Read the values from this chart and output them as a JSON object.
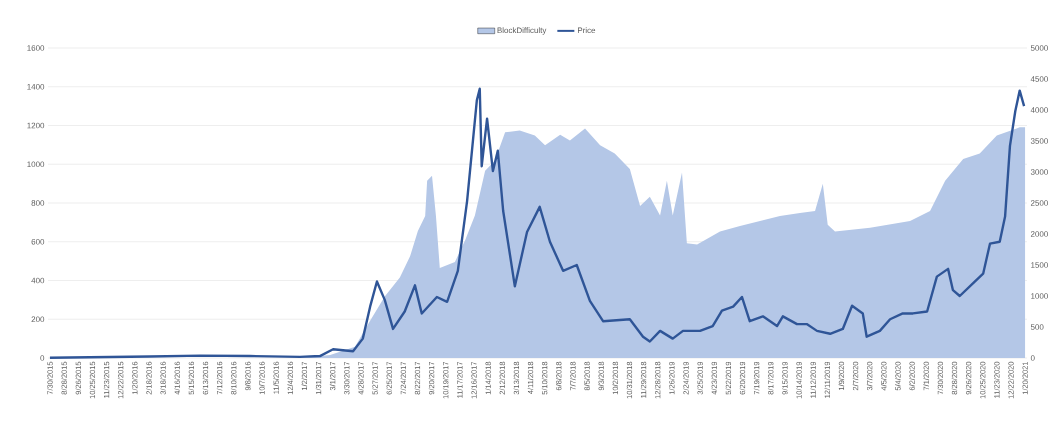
{
  "chart_data": {
    "type": "line",
    "xlim": [
      "2015-07-26",
      "2021-01-24"
    ],
    "xticks": [
      {
        "value": "2015-07-30",
        "label": "7/30/2015"
      },
      {
        "value": "2015-08-28",
        "label": "8/28/2015"
      },
      {
        "value": "2015-09-26",
        "label": "9/26/2015"
      },
      {
        "value": "2015-10-25",
        "label": "10/25/2015"
      },
      {
        "value": "2015-11-23",
        "label": "11/23/2015"
      },
      {
        "value": "2015-12-22",
        "label": "12/22/2015"
      },
      {
        "value": "2016-01-20",
        "label": "1/20/2016"
      },
      {
        "value": "2016-02-18",
        "label": "2/18/2016"
      },
      {
        "value": "2016-03-18",
        "label": "3/18/2016"
      },
      {
        "value": "2016-04-16",
        "label": "4/16/2016"
      },
      {
        "value": "2016-05-15",
        "label": "5/15/2016"
      },
      {
        "value": "2016-06-13",
        "label": "6/13/2016"
      },
      {
        "value": "2016-07-12",
        "label": "7/12/2016"
      },
      {
        "value": "2016-08-10",
        "label": "8/10/2016"
      },
      {
        "value": "2016-09-08",
        "label": "9/8/2016"
      },
      {
        "value": "2016-10-07",
        "label": "10/7/2016"
      },
      {
        "value": "2016-11-05",
        "label": "11/5/2016"
      },
      {
        "value": "2016-12-04",
        "label": "12/4/2016"
      },
      {
        "value": "2017-01-02",
        "label": "1/2/2017"
      },
      {
        "value": "2017-01-31",
        "label": "1/31/2017"
      },
      {
        "value": "2017-03-01",
        "label": "3/1/2017"
      },
      {
        "value": "2017-03-30",
        "label": "3/30/2017"
      },
      {
        "value": "2017-04-28",
        "label": "4/28/2017"
      },
      {
        "value": "2017-05-27",
        "label": "5/27/2017"
      },
      {
        "value": "2017-06-25",
        "label": "6/25/2017"
      },
      {
        "value": "2017-07-24",
        "label": "7/24/2017"
      },
      {
        "value": "2017-08-22",
        "label": "8/22/2017"
      },
      {
        "value": "2017-09-20",
        "label": "9/20/2017"
      },
      {
        "value": "2017-10-19",
        "label": "10/19/2017"
      },
      {
        "value": "2017-11-17",
        "label": "11/17/2017"
      },
      {
        "value": "2017-12-16",
        "label": "12/16/2017"
      },
      {
        "value": "2018-01-14",
        "label": "1/14/2018"
      },
      {
        "value": "2018-02-12",
        "label": "2/12/2018"
      },
      {
        "value": "2018-03-13",
        "label": "3/13/2018"
      },
      {
        "value": "2018-04-11",
        "label": "4/11/2018"
      },
      {
        "value": "2018-05-10",
        "label": "5/10/2018"
      },
      {
        "value": "2018-06-08",
        "label": "6/8/2018"
      },
      {
        "value": "2018-07-07",
        "label": "7/7/2018"
      },
      {
        "value": "2018-08-05",
        "label": "8/5/2018"
      },
      {
        "value": "2018-09-03",
        "label": "9/3/2018"
      },
      {
        "value": "2018-10-02",
        "label": "10/2/2018"
      },
      {
        "value": "2018-10-31",
        "label": "10/31/2018"
      },
      {
        "value": "2018-11-29",
        "label": "11/29/2018"
      },
      {
        "value": "2018-12-28",
        "label": "12/28/2018"
      },
      {
        "value": "2019-01-26",
        "label": "1/26/2019"
      },
      {
        "value": "2019-02-24",
        "label": "2/24/2019"
      },
      {
        "value": "2019-03-25",
        "label": "3/25/2019"
      },
      {
        "value": "2019-04-23",
        "label": "4/23/2019"
      },
      {
        "value": "2019-05-22",
        "label": "5/22/2019"
      },
      {
        "value": "2019-06-20",
        "label": "6/20/2019"
      },
      {
        "value": "2019-07-19",
        "label": "7/19/2019"
      },
      {
        "value": "2019-08-17",
        "label": "8/17/2019"
      },
      {
        "value": "2019-09-15",
        "label": "9/15/2019"
      },
      {
        "value": "2019-10-14",
        "label": "10/14/2019"
      },
      {
        "value": "2019-11-12",
        "label": "11/12/2019"
      },
      {
        "value": "2019-12-11",
        "label": "12/11/2019"
      },
      {
        "value": "2020-01-09",
        "label": "1/9/2020"
      },
      {
        "value": "2020-02-07",
        "label": "2/7/2020"
      },
      {
        "value": "2020-03-07",
        "label": "3/7/2020"
      },
      {
        "value": "2020-04-05",
        "label": "4/5/2020"
      },
      {
        "value": "2020-05-04",
        "label": "5/4/2020"
      },
      {
        "value": "2020-06-02",
        "label": "6/2/2020"
      },
      {
        "value": "2020-07-01",
        "label": "7/1/2020"
      },
      {
        "value": "2020-07-30",
        "label": "7/30/2020"
      },
      {
        "value": "2020-08-28",
        "label": "8/28/2020"
      },
      {
        "value": "2020-09-26",
        "label": "9/26/2020"
      },
      {
        "value": "2020-10-25",
        "label": "10/25/2020"
      },
      {
        "value": "2020-11-23",
        "label": "11/23/2020"
      },
      {
        "value": "2020-12-22",
        "label": "12/22/2020"
      },
      {
        "value": "2021-01-20",
        "label": "1/20/2021"
      }
    ],
    "ylim": [
      0,
      1600
    ],
    "yticks": [
      0,
      200,
      400,
      600,
      800,
      1000,
      1200,
      1400,
      1600
    ],
    "y2lim": [
      0,
      5000
    ],
    "y2ticks": [
      0,
      500,
      1000,
      1500,
      2000,
      2500,
      3000,
      3500,
      4000,
      4500,
      5000
    ],
    "grid": "y",
    "legend": "top",
    "series": [
      {
        "name": "BlockDifficulty",
        "type": "area",
        "axis": "y2",
        "color": "#b4c7e7",
        "x": [
          "2015-07-30",
          "2016-12-24",
          "2017-02-24",
          "2017-04-16",
          "2017-05-17",
          "2017-06-16",
          "2017-07-17",
          "2017-08-07",
          "2017-08-23",
          "2017-09-07",
          "2017-09-11",
          "2017-09-21",
          "2017-09-29",
          "2017-10-07",
          "2017-11-07",
          "2017-11-28",
          "2017-12-18",
          "2018-01-08",
          "2018-01-28",
          "2018-02-18",
          "2018-03-20",
          "2018-04-20",
          "2018-05-11",
          "2018-06-11",
          "2018-07-01",
          "2018-08-01",
          "2018-09-01",
          "2018-10-01",
          "2018-11-01",
          "2018-11-22",
          "2018-12-12",
          "2019-01-02",
          "2019-01-16",
          "2019-01-28",
          "2019-02-16",
          "2019-02-26",
          "2019-03-19",
          "2019-05-05",
          "2019-06-15",
          "2019-07-26",
          "2019-09-05",
          "2019-10-16",
          "2019-11-16",
          "2019-12-02",
          "2019-12-12",
          "2019-12-27",
          "2020-03-08",
          "2020-05-29",
          "2020-07-09",
          "2020-08-09",
          "2020-09-15",
          "2020-10-19",
          "2020-11-23",
          "2021-01-09",
          "2021-01-20"
        ],
        "values": [
          0,
          0,
          50,
          180,
          600,
          990,
          1300,
          1640,
          2050,
          2290,
          2860,
          2940,
          2300,
          1450,
          1550,
          1900,
          2300,
          3020,
          3180,
          3640,
          3670,
          3590,
          3430,
          3600,
          3510,
          3700,
          3430,
          3300,
          3050,
          2450,
          2600,
          2300,
          2860,
          2300,
          2990,
          1850,
          1830,
          2040,
          2130,
          2210,
          2290,
          2340,
          2370,
          2810,
          2150,
          2040,
          2100,
          2210,
          2370,
          2860,
          3210,
          3300,
          3590,
          3720,
          3720
        ]
      },
      {
        "name": "Price",
        "color": "#2f5597",
        "x": [
          "2015-07-30",
          "2016-02-20",
          "2016-06-02",
          "2016-09-12",
          "2016-12-24",
          "2017-02-03",
          "2017-03-02",
          "2017-04-12",
          "2017-05-02",
          "2017-05-17",
          "2017-05-31",
          "2017-06-16",
          "2017-07-03",
          "2017-07-27",
          "2017-08-17",
          "2017-08-31",
          "2017-10-01",
          "2017-10-22",
          "2017-11-13",
          "2017-12-02",
          "2017-12-22",
          "2017-12-28",
          "2018-01-01",
          "2018-01-12",
          "2018-01-24",
          "2018-02-03",
          "2018-02-14",
          "2018-03-10",
          "2018-04-04",
          "2018-04-30",
          "2018-05-21",
          "2018-06-17",
          "2018-07-15",
          "2018-08-11",
          "2018-09-07",
          "2018-11-01",
          "2018-11-28",
          "2018-12-12",
          "2019-01-02",
          "2019-01-28",
          "2019-02-18",
          "2019-03-25",
          "2019-04-20",
          "2019-05-09",
          "2019-06-01",
          "2019-06-19",
          "2019-07-05",
          "2019-08-01",
          "2019-08-30",
          "2019-09-11",
          "2019-10-10",
          "2019-10-30",
          "2019-11-20",
          "2019-12-17",
          "2020-01-12",
          "2020-01-31",
          "2020-02-22",
          "2020-03-01",
          "2020-03-28",
          "2020-04-18",
          "2020-05-14",
          "2020-06-04",
          "2020-07-03",
          "2020-07-23",
          "2020-08-15",
          "2020-08-25",
          "2020-09-08",
          "2020-10-05",
          "2020-10-26",
          "2020-11-09",
          "2020-11-29",
          "2020-12-10",
          "2020-12-20",
          "2020-12-31",
          "2021-01-09",
          "2021-01-18"
        ],
        "values": [
          1,
          8,
          12,
          10,
          6,
          10,
          45,
          35,
          100,
          265,
          395,
          300,
          150,
          240,
          375,
          230,
          315,
          290,
          450,
          810,
          1330,
          1390,
          990,
          1235,
          965,
          1070,
          760,
          370,
          650,
          780,
          600,
          450,
          480,
          295,
          190,
          200,
          110,
          85,
          140,
          100,
          140,
          140,
          165,
          245,
          265,
          315,
          190,
          215,
          165,
          215,
          175,
          175,
          140,
          125,
          150,
          270,
          230,
          110,
          140,
          200,
          230,
          230,
          240,
          420,
          460,
          350,
          320,
          385,
          435,
          590,
          600,
          730,
          1095,
          1275,
          1380,
          1300
        ]
      }
    ]
  }
}
